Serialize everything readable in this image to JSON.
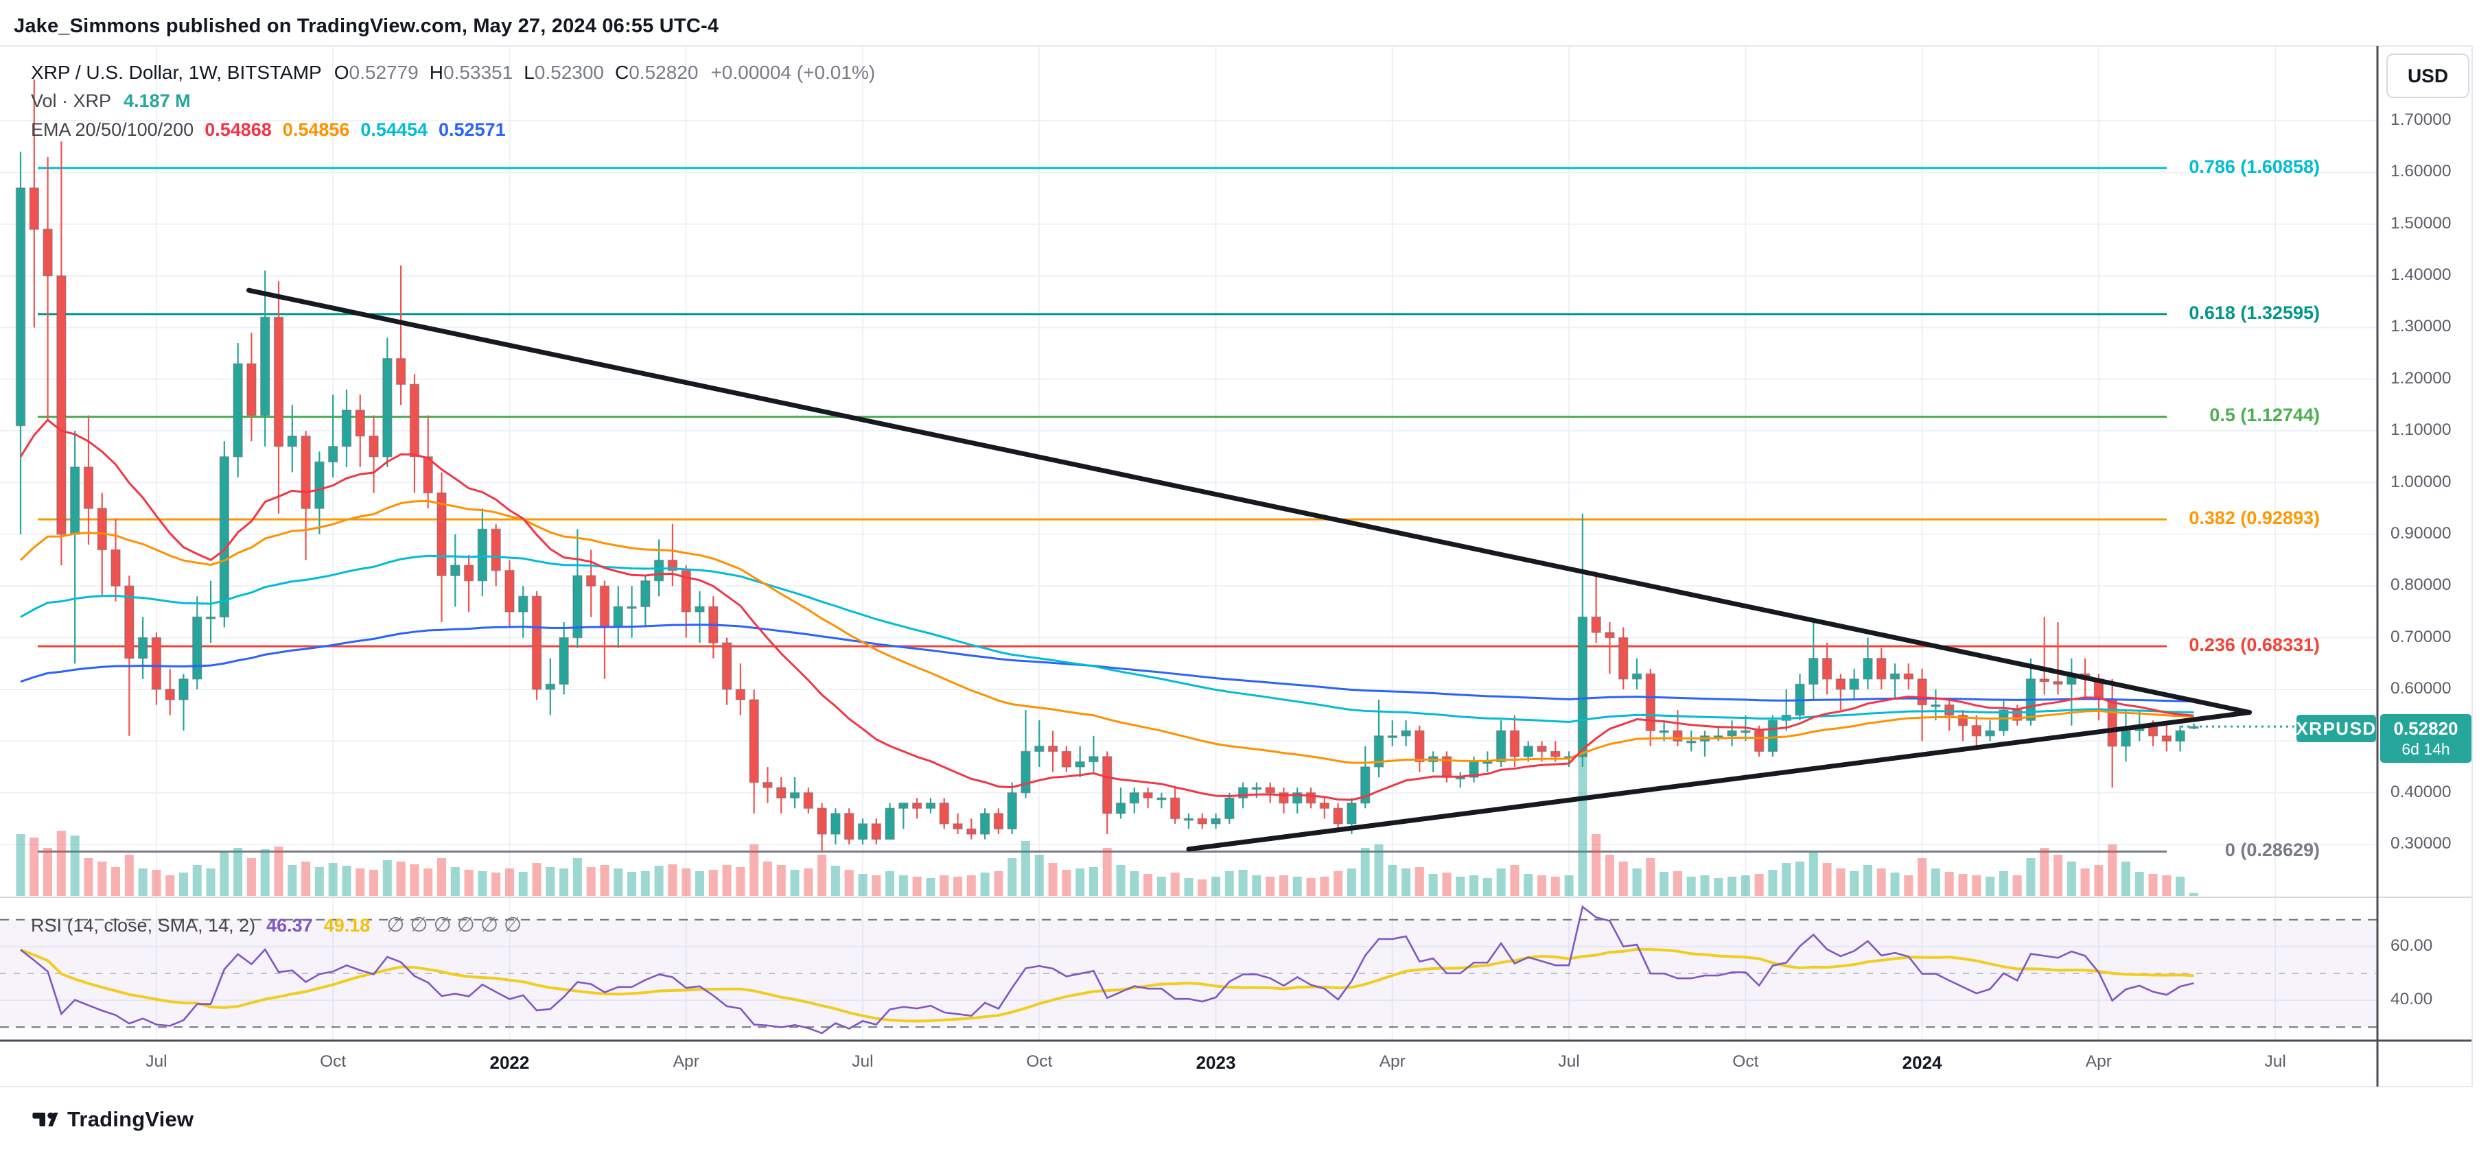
{
  "header": {
    "attribution": "Jake_Simmons published on TradingView.com, May 27, 2024 06:55 UTC-4"
  },
  "footer": {
    "brand": "TradingView"
  },
  "toolbar": {
    "currency_button": "USD"
  },
  "legend": {
    "title": "XRP / U.S. Dollar, 1W, BITSTAMP",
    "ohlc": [
      [
        "O",
        "0.52779"
      ],
      [
        "H",
        "0.53351"
      ],
      [
        "L",
        "0.52300"
      ],
      [
        "C",
        "0.52820"
      ]
    ],
    "change": "+0.00004 (+0.01%)",
    "volume_label": "Vol · XRP",
    "volume_value": "4.187 M",
    "ema_label": "EMA 20/50/100/200",
    "ema_values": [
      {
        "text": "0.54868",
        "color": "#f23645"
      },
      {
        "text": "0.54856",
        "color": "#ff9100"
      },
      {
        "text": "0.54454",
        "color": "#00bcd4"
      },
      {
        "text": "0.52571",
        "color": "#2962ff"
      }
    ],
    "rsi_label": "RSI (14, close, SMA, 14, 2)",
    "rsi_value": {
      "text": "46.37",
      "color": "#7e57c2"
    },
    "rsi_sma_value": {
      "text": "49.18",
      "color": "#eec20f"
    },
    "rsi_empty": [
      "∅",
      "∅",
      "∅",
      "∅",
      "∅",
      "∅"
    ]
  },
  "symbol_badge": {
    "label": "XRPUSD",
    "color": "#26a69a"
  },
  "price_axis": {
    "ticks": [
      {
        "label": "1.70000",
        "price": 1.7
      },
      {
        "label": "1.60000",
        "price": 1.6
      },
      {
        "label": "1.50000",
        "price": 1.5
      },
      {
        "label": "1.40000",
        "price": 1.4
      },
      {
        "label": "1.30000",
        "price": 1.3
      },
      {
        "label": "1.20000",
        "price": 1.2
      },
      {
        "label": "1.10000",
        "price": 1.1
      },
      {
        "label": "1.00000",
        "price": 1.0
      },
      {
        "label": "0.90000",
        "price": 0.9
      },
      {
        "label": "0.80000",
        "price": 0.8
      },
      {
        "label": "0.70000",
        "price": 0.7
      },
      {
        "label": "0.60000",
        "price": 0.6
      },
      {
        "label": "0.50000",
        "price": 0.5
      },
      {
        "label": "0.40000",
        "price": 0.4
      },
      {
        "label": "0.30000",
        "price": 0.3
      }
    ],
    "badge": {
      "price": "0.52820",
      "countdown": "6d 14h",
      "color": "#26a69a",
      "value": 0.5282
    }
  },
  "rsi_axis": {
    "ticks": [
      {
        "label": "60.00",
        "value": 60
      },
      {
        "label": "40.00",
        "value": 40
      }
    ]
  },
  "time_axis": {
    "ticks": [
      {
        "label": "Jul",
        "week": 10,
        "bold": false
      },
      {
        "label": "Oct",
        "week": 23,
        "bold": false
      },
      {
        "label": "2022",
        "week": 36,
        "bold": true
      },
      {
        "label": "Apr",
        "week": 49,
        "bold": false
      },
      {
        "label": "Jul",
        "week": 62,
        "bold": false
      },
      {
        "label": "Oct",
        "week": 75,
        "bold": false
      },
      {
        "label": "2023",
        "week": 88,
        "bold": true
      },
      {
        "label": "Apr",
        "week": 101,
        "bold": false
      },
      {
        "label": "Jul",
        "week": 114,
        "bold": false
      },
      {
        "label": "Oct",
        "week": 127,
        "bold": false
      },
      {
        "label": "2024",
        "week": 140,
        "bold": true
      },
      {
        "label": "Apr",
        "week": 153,
        "bold": false
      },
      {
        "label": "Jul",
        "week": 166,
        "bold": false
      }
    ]
  },
  "fib_levels": [
    {
      "label": "0.786 (1.60858)",
      "price": 1.60858,
      "color": "#00bcd4"
    },
    {
      "label": "0.618 (1.32595)",
      "price": 1.32595,
      "color": "#009688"
    },
    {
      "label": "0.5 (1.12744)",
      "price": 1.12744,
      "color": "#4caf50"
    },
    {
      "label": "0.382 (0.92893)",
      "price": 0.92893,
      "color": "#ff9800"
    },
    {
      "label": "0.236 (0.68331)",
      "price": 0.68331,
      "color": "#f44336"
    },
    {
      "label": "0 (0.28629)",
      "price": 0.28629,
      "color": "#787b86"
    }
  ],
  "chart_data": {
    "type": "candlestick",
    "symbol": "XRPUSD",
    "exchange": "BITSTAMP",
    "timeframe": "1W",
    "start_week": "2021-04-26",
    "ylabel": "USD",
    "ylim": [
      0.21,
      1.845
    ],
    "grid": true,
    "current_price": 0.5282,
    "volume_unit": "M",
    "ema_periods": [
      20,
      50,
      100,
      200
    ],
    "ema_colors": [
      "#f23645",
      "#ff9100",
      "#00bcd4",
      "#2962ff"
    ],
    "ema_seeds": [
      1.05,
      0.85,
      0.74,
      0.615
    ],
    "rsi": {
      "length": 14,
      "source": "close",
      "smoothing": "SMA",
      "smoothing_length": 14,
      "band": [
        30,
        70
      ],
      "mid": 50,
      "line_color": "#7e57c2",
      "sma_color": "#f2cd1e"
    },
    "trendlines": [
      {
        "name": "descending-resistance",
        "from": {
          "week": 16.8,
          "price": 1.372
        },
        "to": {
          "week": 164.1,
          "price": 0.5555
        },
        "color": "#16191f"
      },
      {
        "name": "ascending-support",
        "from": {
          "week": 86.0,
          "price": 0.2909
        },
        "to": {
          "week": 164.1,
          "price": 0.5555
        },
        "color": "#16191f"
      }
    ],
    "weeks": [
      [
        1.11,
        1.64,
        0.9,
        1.57,
        90
      ],
      [
        1.57,
        1.78,
        1.3,
        1.49,
        85
      ],
      [
        1.49,
        1.63,
        1.12,
        1.4,
        70
      ],
      [
        1.4,
        1.66,
        0.84,
        0.9,
        95
      ],
      [
        0.9,
        1.1,
        0.65,
        1.03,
        88
      ],
      [
        1.03,
        1.13,
        0.88,
        0.95,
        55
      ],
      [
        0.95,
        0.98,
        0.78,
        0.87,
        50
      ],
      [
        0.87,
        0.93,
        0.77,
        0.8,
        42
      ],
      [
        0.8,
        0.82,
        0.51,
        0.66,
        60
      ],
      [
        0.66,
        0.74,
        0.62,
        0.7,
        40
      ],
      [
        0.7,
        0.71,
        0.57,
        0.6,
        38
      ],
      [
        0.6,
        0.64,
        0.55,
        0.58,
        30
      ],
      [
        0.58,
        0.63,
        0.52,
        0.62,
        34
      ],
      [
        0.62,
        0.78,
        0.6,
        0.74,
        45
      ],
      [
        0.74,
        0.81,
        0.69,
        0.74,
        40
      ],
      [
        0.74,
        1.08,
        0.72,
        1.05,
        65
      ],
      [
        1.05,
        1.27,
        1.01,
        1.23,
        70
      ],
      [
        1.23,
        1.29,
        1.08,
        1.13,
        55
      ],
      [
        1.13,
        1.41,
        1.07,
        1.32,
        68
      ],
      [
        1.32,
        1.39,
        0.94,
        1.07,
        72
      ],
      [
        1.07,
        1.15,
        1.02,
        1.09,
        45
      ],
      [
        1.09,
        1.1,
        0.85,
        0.95,
        50
      ],
      [
        0.95,
        1.06,
        0.9,
        1.04,
        42
      ],
      [
        1.04,
        1.17,
        1.01,
        1.07,
        48
      ],
      [
        1.07,
        1.18,
        1.03,
        1.14,
        44
      ],
      [
        1.14,
        1.17,
        1.03,
        1.09,
        40
      ],
      [
        1.09,
        1.13,
        0.98,
        1.05,
        38
      ],
      [
        1.05,
        1.28,
        1.03,
        1.24,
        52
      ],
      [
        1.24,
        1.42,
        1.15,
        1.19,
        50
      ],
      [
        1.19,
        1.21,
        0.98,
        1.05,
        46
      ],
      [
        1.05,
        1.13,
        0.95,
        0.98,
        40
      ],
      [
        0.98,
        1.02,
        0.73,
        0.82,
        55
      ],
      [
        0.82,
        0.9,
        0.76,
        0.84,
        42
      ],
      [
        0.84,
        0.86,
        0.75,
        0.81,
        38
      ],
      [
        0.81,
        0.95,
        0.78,
        0.91,
        36
      ],
      [
        0.91,
        0.92,
        0.8,
        0.83,
        34
      ],
      [
        0.83,
        0.85,
        0.72,
        0.75,
        40
      ],
      [
        0.75,
        0.8,
        0.7,
        0.78,
        35
      ],
      [
        0.78,
        0.79,
        0.58,
        0.6,
        48
      ],
      [
        0.6,
        0.66,
        0.55,
        0.61,
        42
      ],
      [
        0.61,
        0.73,
        0.59,
        0.7,
        40
      ],
      [
        0.7,
        0.91,
        0.68,
        0.82,
        55
      ],
      [
        0.82,
        0.87,
        0.74,
        0.8,
        42
      ],
      [
        0.8,
        0.81,
        0.62,
        0.72,
        45
      ],
      [
        0.72,
        0.8,
        0.68,
        0.76,
        40
      ],
      [
        0.76,
        0.8,
        0.7,
        0.76,
        35
      ],
      [
        0.76,
        0.82,
        0.72,
        0.81,
        36
      ],
      [
        0.81,
        0.89,
        0.78,
        0.85,
        44
      ],
      [
        0.85,
        0.92,
        0.8,
        0.83,
        46
      ],
      [
        0.83,
        0.84,
        0.7,
        0.75,
        40
      ],
      [
        0.75,
        0.79,
        0.69,
        0.76,
        36
      ],
      [
        0.76,
        0.78,
        0.66,
        0.69,
        38
      ],
      [
        0.69,
        0.7,
        0.57,
        0.6,
        45
      ],
      [
        0.6,
        0.65,
        0.55,
        0.58,
        42
      ],
      [
        0.58,
        0.6,
        0.36,
        0.42,
        75
      ],
      [
        0.42,
        0.45,
        0.38,
        0.41,
        50
      ],
      [
        0.41,
        0.43,
        0.36,
        0.39,
        45
      ],
      [
        0.39,
        0.43,
        0.37,
        0.4,
        38
      ],
      [
        0.4,
        0.41,
        0.36,
        0.37,
        40
      ],
      [
        0.37,
        0.38,
        0.286,
        0.32,
        60
      ],
      [
        0.32,
        0.37,
        0.3,
        0.36,
        44
      ],
      [
        0.36,
        0.37,
        0.3,
        0.31,
        38
      ],
      [
        0.31,
        0.35,
        0.3,
        0.34,
        32
      ],
      [
        0.34,
        0.35,
        0.3,
        0.31,
        30
      ],
      [
        0.31,
        0.38,
        0.31,
        0.37,
        36
      ],
      [
        0.37,
        0.38,
        0.33,
        0.38,
        30
      ],
      [
        0.38,
        0.39,
        0.35,
        0.37,
        28
      ],
      [
        0.37,
        0.39,
        0.36,
        0.38,
        26
      ],
      [
        0.38,
        0.39,
        0.33,
        0.34,
        30
      ],
      [
        0.34,
        0.36,
        0.32,
        0.33,
        28
      ],
      [
        0.33,
        0.35,
        0.31,
        0.32,
        30
      ],
      [
        0.32,
        0.37,
        0.31,
        0.36,
        34
      ],
      [
        0.36,
        0.37,
        0.32,
        0.33,
        36
      ],
      [
        0.33,
        0.42,
        0.32,
        0.4,
        55
      ],
      [
        0.4,
        0.56,
        0.39,
        0.48,
        80
      ],
      [
        0.48,
        0.54,
        0.45,
        0.49,
        60
      ],
      [
        0.49,
        0.52,
        0.44,
        0.48,
        48
      ],
      [
        0.48,
        0.49,
        0.44,
        0.45,
        38
      ],
      [
        0.45,
        0.49,
        0.43,
        0.46,
        40
      ],
      [
        0.46,
        0.51,
        0.44,
        0.47,
        42
      ],
      [
        0.47,
        0.48,
        0.32,
        0.36,
        70
      ],
      [
        0.36,
        0.41,
        0.35,
        0.38,
        45
      ],
      [
        0.38,
        0.41,
        0.36,
        0.4,
        36
      ],
      [
        0.4,
        0.41,
        0.37,
        0.39,
        32
      ],
      [
        0.39,
        0.4,
        0.37,
        0.39,
        28
      ],
      [
        0.39,
        0.41,
        0.34,
        0.35,
        34
      ],
      [
        0.35,
        0.36,
        0.33,
        0.35,
        26
      ],
      [
        0.35,
        0.36,
        0.33,
        0.34,
        24
      ],
      [
        0.34,
        0.36,
        0.33,
        0.35,
        28
      ],
      [
        0.35,
        0.4,
        0.34,
        0.39,
        36
      ],
      [
        0.39,
        0.42,
        0.37,
        0.41,
        38
      ],
      [
        0.41,
        0.42,
        0.39,
        0.41,
        30
      ],
      [
        0.41,
        0.42,
        0.38,
        0.4,
        28
      ],
      [
        0.4,
        0.41,
        0.36,
        0.38,
        30
      ],
      [
        0.38,
        0.41,
        0.36,
        0.4,
        28
      ],
      [
        0.4,
        0.41,
        0.37,
        0.38,
        26
      ],
      [
        0.38,
        0.39,
        0.35,
        0.37,
        28
      ],
      [
        0.37,
        0.38,
        0.33,
        0.34,
        36
      ],
      [
        0.34,
        0.39,
        0.32,
        0.38,
        40
      ],
      [
        0.38,
        0.49,
        0.37,
        0.45,
        70
      ],
      [
        0.45,
        0.58,
        0.43,
        0.51,
        75
      ],
      [
        0.51,
        0.54,
        0.49,
        0.51,
        45
      ],
      [
        0.51,
        0.54,
        0.49,
        0.52,
        40
      ],
      [
        0.52,
        0.53,
        0.44,
        0.46,
        42
      ],
      [
        0.46,
        0.48,
        0.44,
        0.47,
        32
      ],
      [
        0.47,
        0.48,
        0.42,
        0.43,
        34
      ],
      [
        0.43,
        0.44,
        0.41,
        0.43,
        28
      ],
      [
        0.43,
        0.47,
        0.42,
        0.46,
        30
      ],
      [
        0.46,
        0.48,
        0.44,
        0.46,
        26
      ],
      [
        0.46,
        0.54,
        0.45,
        0.52,
        40
      ],
      [
        0.52,
        0.55,
        0.45,
        0.47,
        45
      ],
      [
        0.47,
        0.5,
        0.46,
        0.49,
        32
      ],
      [
        0.49,
        0.5,
        0.46,
        0.48,
        30
      ],
      [
        0.48,
        0.5,
        0.46,
        0.47,
        28
      ],
      [
        0.47,
        0.48,
        0.45,
        0.47,
        30
      ],
      [
        0.47,
        0.94,
        0.45,
        0.74,
        210
      ],
      [
        0.74,
        0.82,
        0.69,
        0.71,
        90
      ],
      [
        0.71,
        0.73,
        0.63,
        0.7,
        60
      ],
      [
        0.7,
        0.72,
        0.6,
        0.62,
        50
      ],
      [
        0.62,
        0.66,
        0.6,
        0.63,
        40
      ],
      [
        0.63,
        0.64,
        0.49,
        0.52,
        55
      ],
      [
        0.52,
        0.54,
        0.5,
        0.52,
        35
      ],
      [
        0.52,
        0.56,
        0.49,
        0.5,
        36
      ],
      [
        0.5,
        0.52,
        0.48,
        0.5,
        28
      ],
      [
        0.5,
        0.52,
        0.47,
        0.51,
        30
      ],
      [
        0.51,
        0.53,
        0.5,
        0.51,
        26
      ],
      [
        0.51,
        0.54,
        0.49,
        0.52,
        28
      ],
      [
        0.52,
        0.55,
        0.5,
        0.52,
        30
      ],
      [
        0.52,
        0.53,
        0.47,
        0.48,
        32
      ],
      [
        0.48,
        0.55,
        0.47,
        0.54,
        38
      ],
      [
        0.54,
        0.6,
        0.52,
        0.55,
        48
      ],
      [
        0.55,
        0.63,
        0.54,
        0.61,
        50
      ],
      [
        0.61,
        0.73,
        0.58,
        0.66,
        65
      ],
      [
        0.66,
        0.69,
        0.59,
        0.62,
        48
      ],
      [
        0.62,
        0.63,
        0.56,
        0.6,
        40
      ],
      [
        0.6,
        0.64,
        0.58,
        0.62,
        36
      ],
      [
        0.62,
        0.7,
        0.6,
        0.66,
        45
      ],
      [
        0.66,
        0.68,
        0.6,
        0.62,
        40
      ],
      [
        0.62,
        0.65,
        0.58,
        0.63,
        34
      ],
      [
        0.63,
        0.65,
        0.6,
        0.62,
        30
      ],
      [
        0.62,
        0.64,
        0.5,
        0.57,
        55
      ],
      [
        0.57,
        0.6,
        0.54,
        0.57,
        40
      ],
      [
        0.57,
        0.58,
        0.52,
        0.55,
        35
      ],
      [
        0.55,
        0.56,
        0.5,
        0.53,
        32
      ],
      [
        0.53,
        0.55,
        0.49,
        0.51,
        30
      ],
      [
        0.51,
        0.54,
        0.5,
        0.52,
        28
      ],
      [
        0.52,
        0.58,
        0.51,
        0.56,
        36
      ],
      [
        0.56,
        0.57,
        0.53,
        0.54,
        30
      ],
      [
        0.54,
        0.66,
        0.53,
        0.62,
        55
      ],
      [
        0.62,
        0.74,
        0.59,
        0.615,
        70
      ],
      [
        0.615,
        0.73,
        0.59,
        0.61,
        60
      ],
      [
        0.61,
        0.66,
        0.53,
        0.63,
        50
      ],
      [
        0.63,
        0.66,
        0.58,
        0.62,
        40
      ],
      [
        0.62,
        0.63,
        0.54,
        0.58,
        45
      ],
      [
        0.58,
        0.62,
        0.41,
        0.49,
        75
      ],
      [
        0.49,
        0.56,
        0.46,
        0.52,
        50
      ],
      [
        0.52,
        0.56,
        0.5,
        0.53,
        35
      ],
      [
        0.53,
        0.54,
        0.49,
        0.51,
        32
      ],
      [
        0.51,
        0.53,
        0.48,
        0.5,
        30
      ],
      [
        0.5,
        0.53,
        0.48,
        0.52,
        28
      ],
      [
        0.528,
        0.534,
        0.523,
        0.528,
        4.187
      ]
    ]
  }
}
